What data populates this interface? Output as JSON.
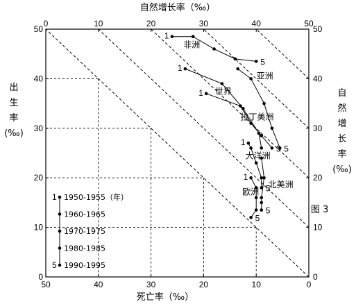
{
  "chart_data": {
    "type": "scatter",
    "title": "",
    "xlabel": "死亡率（‰）",
    "ylabel": "出生率（‰）",
    "top_label": "自然增长率（‰）",
    "right_label": "自然增长率（‰）",
    "figure_label": "图 3",
    "xlim": [
      50,
      0
    ],
    "ylim": [
      0,
      50
    ],
    "x_ticks": [
      50,
      40,
      30,
      20,
      10,
      0
    ],
    "y_ticks": [
      0,
      10,
      20,
      30,
      40,
      50
    ],
    "top_ticks": [
      0,
      10,
      20,
      30,
      40,
      50
    ],
    "right_ticks": [
      0,
      10,
      20,
      30,
      40,
      50
    ],
    "natural_growth_lines": [
      0,
      10,
      20,
      30,
      40
    ],
    "reference_lines": [
      {
        "birth": 40,
        "death": 40
      },
      {
        "birth": 30,
        "death": 30
      },
      {
        "birth": 20,
        "death": 20
      },
      {
        "birth": 10,
        "death": 10
      }
    ],
    "legend": {
      "entries": [
        {
          "mark": "1",
          "label": "1950-1955（年）"
        },
        {
          "mark": "",
          "label": "1960-1965"
        },
        {
          "mark": "",
          "label": "1970-1975"
        },
        {
          "mark": "",
          "label": "1980-1985"
        },
        {
          "mark": "5",
          "label": "1990-1995"
        }
      ]
    },
    "series": [
      {
        "name": "非洲",
        "start_mark": "1",
        "end_mark": "5",
        "death": [
          26,
          22,
          18,
          14,
          10
        ],
        "birth": [
          48.5,
          48.5,
          46,
          44,
          43.5
        ]
      },
      {
        "name": "世界",
        "start_mark": "1",
        "end_mark": "",
        "death": [
          23.5,
          16.5,
          12.5,
          9.5,
          9.0
        ],
        "birth": [
          42,
          39,
          34,
          29,
          26
        ]
      },
      {
        "name": "亚洲",
        "start_mark": "",
        "end_mark": "5",
        "death": [
          13.5,
          11,
          8.5,
          7,
          5.5
        ],
        "birth": [
          42,
          40,
          35,
          30,
          26
        ]
      },
      {
        "name": "拉丁美洲",
        "start_mark": "1",
        "end_mark": "5",
        "death": [
          19.5,
          13,
          11,
          9,
          7
        ],
        "birth": [
          37,
          34.5,
          31,
          28.5,
          26
        ]
      },
      {
        "name": "大洋洲",
        "start_mark": "1",
        "end_mark": "5",
        "death": [
          11.5,
          11,
          10,
          9,
          9
        ],
        "birth": [
          27,
          26,
          23,
          20,
          18
        ]
      },
      {
        "name": "欧洲",
        "start_mark": "1",
        "end_mark": "5",
        "death": [
          11,
          10,
          10,
          10,
          11
        ],
        "birth": [
          20,
          18,
          16,
          13.5,
          12
        ]
      },
      {
        "name": "北美洲",
        "start_mark": "",
        "end_mark": "5",
        "death": [
          9,
          8.5,
          9,
          9,
          9
        ],
        "birth": [
          24,
          20,
          16,
          15,
          13.5
        ]
      }
    ]
  }
}
